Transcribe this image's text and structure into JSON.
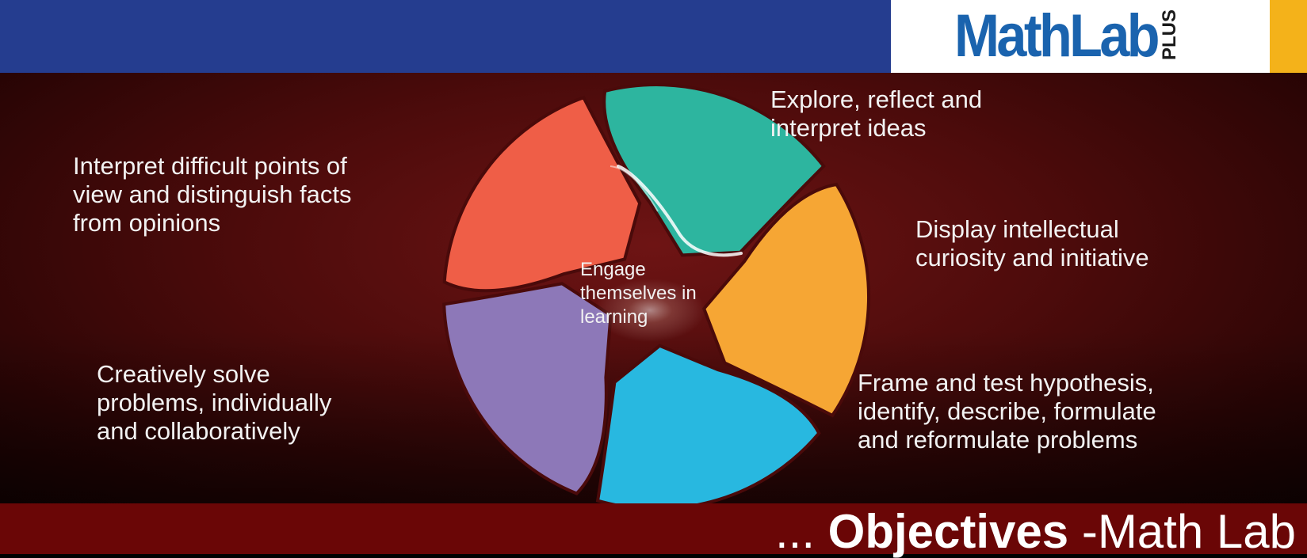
{
  "header": {
    "logo_text": "MathLab",
    "logo_plus": "PLUS"
  },
  "diagram": {
    "center": "Engage\nthemselves in\nlearning",
    "segments": [
      {
        "label": "Explore, reflect and\ninterpret ideas",
        "color": "#2db59f"
      },
      {
        "label": "Display intellectual\ncuriosity and initiative",
        "color": "#f6a634"
      },
      {
        "label": "Frame and test hypothesis,\nidentify, describe, formulate\nand reformulate problems",
        "color": "#28b8e0"
      },
      {
        "label": "Creatively solve\nproblems, individually\nand collaboratively",
        "color": "#8d78b8"
      },
      {
        "label": "Interpret difficult points of\nview and distinguish facts\nfrom opinions",
        "color": "#ef5e47"
      }
    ]
  },
  "footer": {
    "dots": "... ",
    "title_bold": "Objectives",
    "title_rest": " -Math Lab"
  }
}
